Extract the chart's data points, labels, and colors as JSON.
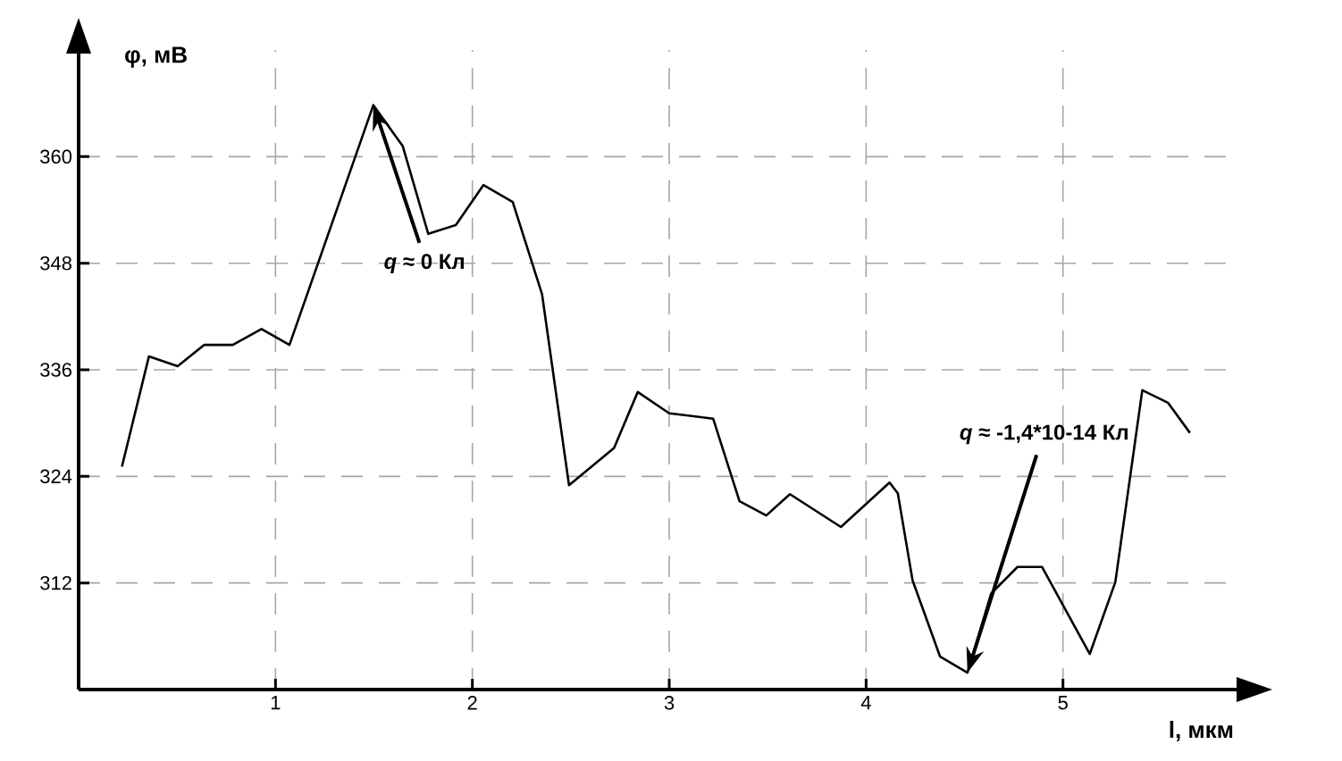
{
  "chart_data": {
    "type": "line",
    "xlabel": "l, мкм",
    "ylabel": "φ, мВ",
    "x": [
      0.22,
      0.357,
      0.503,
      0.637,
      0.783,
      0.929,
      1.071,
      1.497,
      1.646,
      1.776,
      1.916,
      2.056,
      2.205,
      2.354,
      2.491,
      2.72,
      2.84,
      3.0,
      3.223,
      3.357,
      3.493,
      3.613,
      3.872,
      4.119,
      4.161,
      4.236,
      4.376,
      4.515,
      4.635,
      4.769,
      4.894,
      5.136,
      5.266,
      5.403,
      5.533,
      5.645
    ],
    "series": [
      {
        "color": "#000000",
        "values": [
          325.1,
          337.5,
          336.4,
          338.8,
          338.8,
          340.6,
          338.8,
          365.8,
          361.2,
          351.3,
          352.3,
          356.8,
          354.9,
          344.5,
          323.0,
          327.2,
          333.5,
          331.1,
          330.5,
          321.2,
          319.6,
          322.0,
          318.3,
          323.3,
          322.1,
          312.3,
          303.7,
          301.9,
          310.8,
          313.8,
          313.8,
          304.0,
          312.1,
          333.7,
          332.3,
          328.9
        ]
      }
    ],
    "xlim": [
      0,
      5.9
    ],
    "ylim": [
      300,
      372
    ],
    "xticks": [
      1,
      2,
      3,
      4,
      5
    ],
    "yticks": [
      312,
      324,
      336,
      348,
      360
    ],
    "grid": true,
    "marker": "none",
    "line_style": "solid",
    "annotations": [
      {
        "text": "*q* ≈ 0 Кл",
        "x": 1.497,
        "y": 365.8
      },
      {
        "text": "*q* ≈ -1,4*10-14 Кл",
        "x": 4.515,
        "y": 301.9
      }
    ]
  }
}
